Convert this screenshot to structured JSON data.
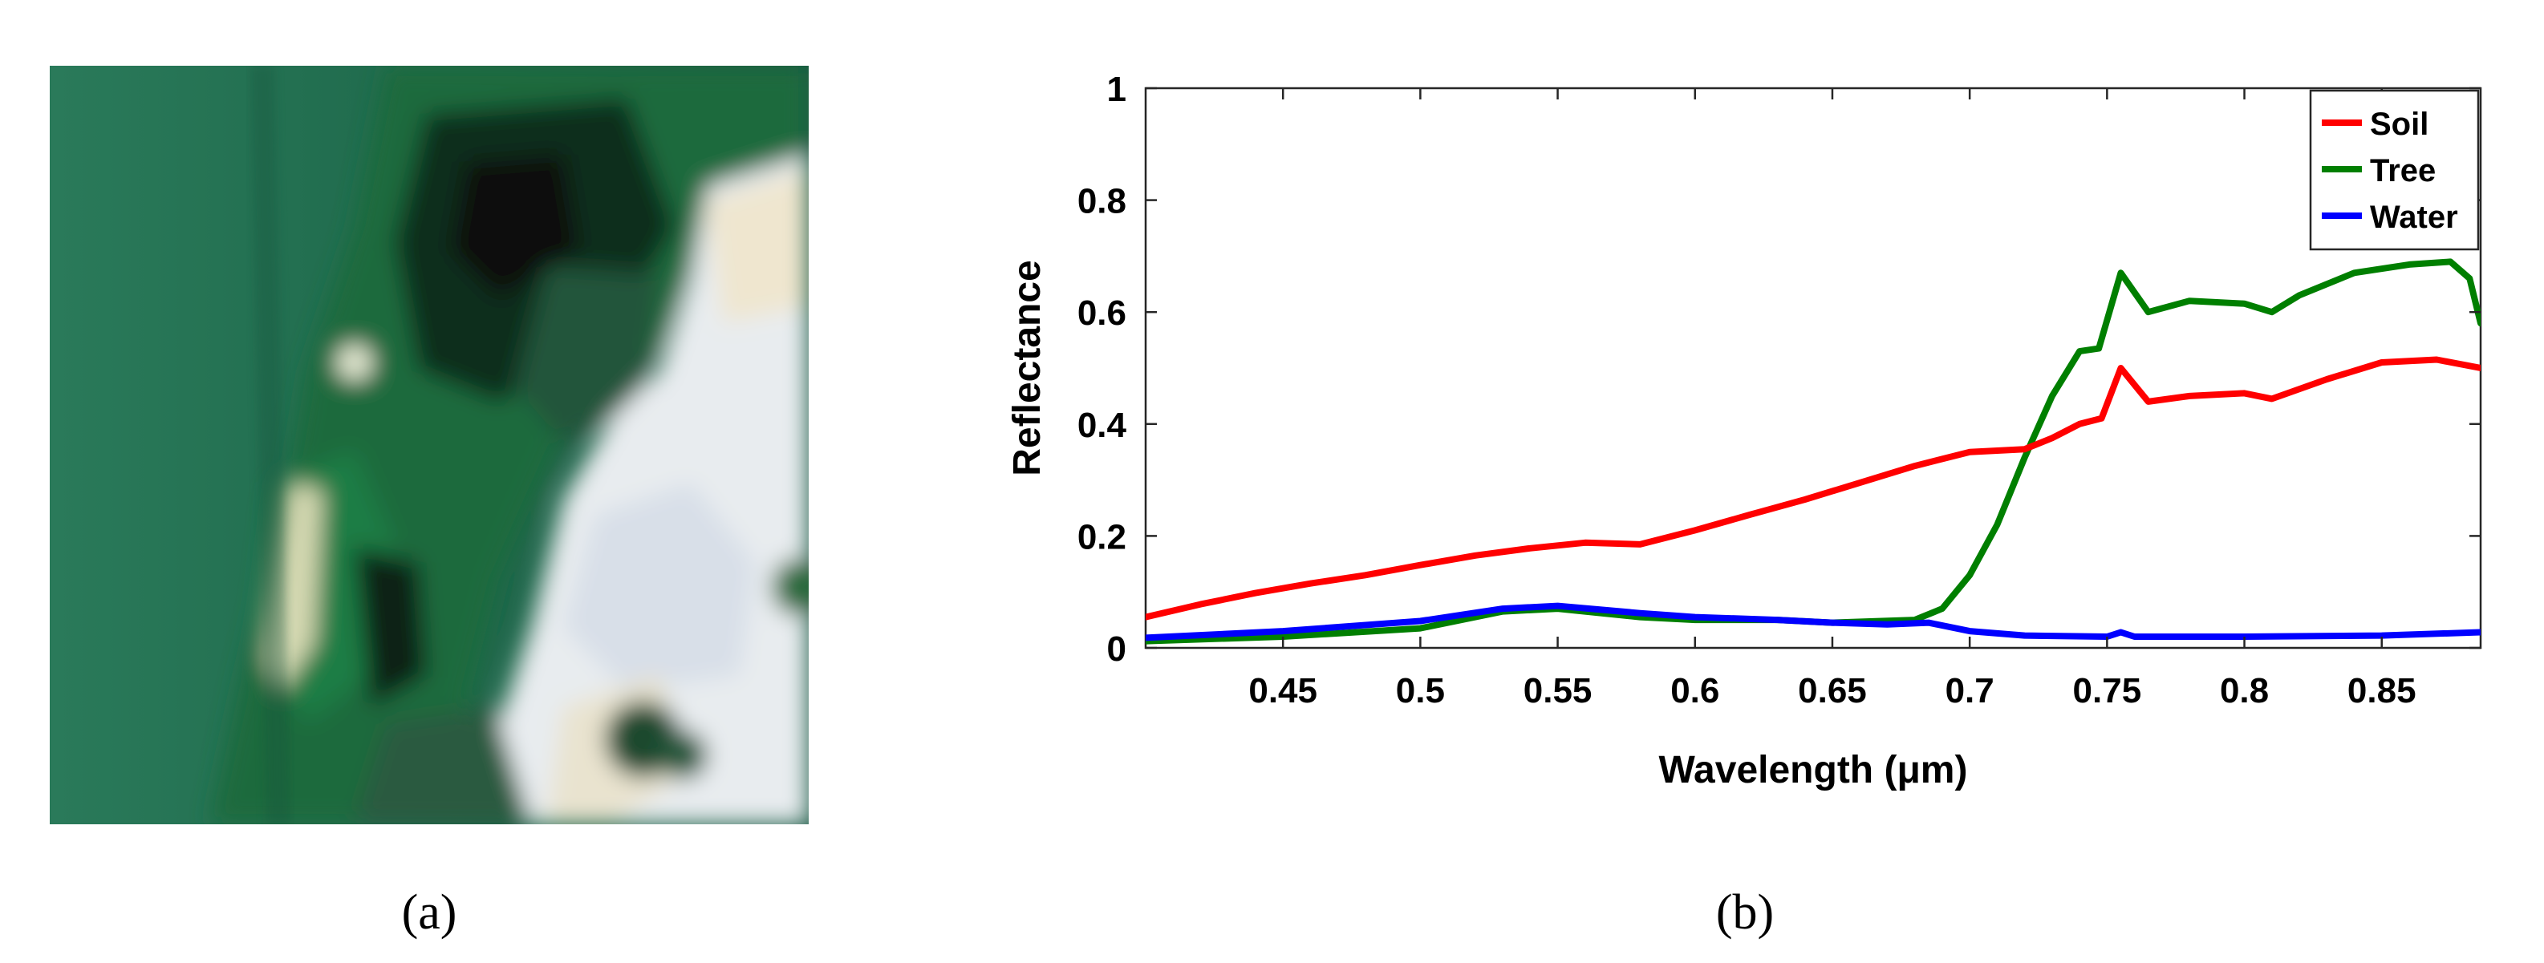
{
  "panels": {
    "a": {
      "caption": "(a)",
      "description_icon": "satellite-image"
    },
    "b": {
      "caption": "(b)"
    }
  },
  "colors": {
    "soil": "#ff0000",
    "tree": "#007f00",
    "water": "#0000ff"
  },
  "chart_data": {
    "type": "line",
    "title": "",
    "xlabel": "Wavelength (μm)",
    "ylabel": "Reflectance",
    "xlim": [
      0.4,
      0.886
    ],
    "ylim": [
      0,
      1
    ],
    "xticks": [
      0.45,
      0.5,
      0.55,
      0.6,
      0.65,
      0.7,
      0.75,
      0.8,
      0.85
    ],
    "xtick_labels": [
      "0.45",
      "0.5",
      "0.55",
      "0.6",
      "0.65",
      "0.7",
      "0.75",
      "0.8",
      "0.85"
    ],
    "yticks": [
      0,
      0.2,
      0.4,
      0.6,
      0.8,
      1
    ],
    "ytick_labels": [
      "0",
      "0.2",
      "0.4",
      "0.6",
      "0.8",
      "1"
    ],
    "legend_position": "top-right",
    "series": [
      {
        "name": "Soil",
        "color": "#ff0000",
        "points": [
          [
            0.4,
            0.055
          ],
          [
            0.42,
            0.078
          ],
          [
            0.44,
            0.098
          ],
          [
            0.46,
            0.115
          ],
          [
            0.48,
            0.13
          ],
          [
            0.5,
            0.148
          ],
          [
            0.52,
            0.165
          ],
          [
            0.54,
            0.178
          ],
          [
            0.56,
            0.188
          ],
          [
            0.58,
            0.185
          ],
          [
            0.6,
            0.21
          ],
          [
            0.62,
            0.238
          ],
          [
            0.64,
            0.265
          ],
          [
            0.66,
            0.295
          ],
          [
            0.68,
            0.325
          ],
          [
            0.7,
            0.35
          ],
          [
            0.72,
            0.355
          ],
          [
            0.73,
            0.375
          ],
          [
            0.74,
            0.4
          ],
          [
            0.748,
            0.41
          ],
          [
            0.755,
            0.5
          ],
          [
            0.765,
            0.44
          ],
          [
            0.78,
            0.45
          ],
          [
            0.8,
            0.455
          ],
          [
            0.81,
            0.445
          ],
          [
            0.83,
            0.48
          ],
          [
            0.85,
            0.51
          ],
          [
            0.87,
            0.515
          ],
          [
            0.886,
            0.5
          ]
        ]
      },
      {
        "name": "Tree",
        "color": "#007f00",
        "points": [
          [
            0.4,
            0.012
          ],
          [
            0.45,
            0.02
          ],
          [
            0.5,
            0.035
          ],
          [
            0.53,
            0.065
          ],
          [
            0.55,
            0.07
          ],
          [
            0.58,
            0.055
          ],
          [
            0.6,
            0.05
          ],
          [
            0.63,
            0.05
          ],
          [
            0.65,
            0.045
          ],
          [
            0.68,
            0.05
          ],
          [
            0.69,
            0.07
          ],
          [
            0.7,
            0.13
          ],
          [
            0.71,
            0.22
          ],
          [
            0.72,
            0.34
          ],
          [
            0.73,
            0.45
          ],
          [
            0.74,
            0.53
          ],
          [
            0.747,
            0.535
          ],
          [
            0.755,
            0.67
          ],
          [
            0.765,
            0.6
          ],
          [
            0.78,
            0.62
          ],
          [
            0.8,
            0.615
          ],
          [
            0.81,
            0.6
          ],
          [
            0.82,
            0.63
          ],
          [
            0.84,
            0.67
          ],
          [
            0.86,
            0.685
          ],
          [
            0.875,
            0.69
          ],
          [
            0.882,
            0.66
          ],
          [
            0.886,
            0.58
          ]
        ]
      },
      {
        "name": "Water",
        "color": "#0000ff",
        "points": [
          [
            0.4,
            0.018
          ],
          [
            0.45,
            0.03
          ],
          [
            0.5,
            0.048
          ],
          [
            0.53,
            0.07
          ],
          [
            0.55,
            0.075
          ],
          [
            0.58,
            0.062
          ],
          [
            0.6,
            0.055
          ],
          [
            0.63,
            0.05
          ],
          [
            0.65,
            0.045
          ],
          [
            0.67,
            0.042
          ],
          [
            0.685,
            0.045
          ],
          [
            0.7,
            0.03
          ],
          [
            0.72,
            0.022
          ],
          [
            0.75,
            0.02
          ],
          [
            0.755,
            0.028
          ],
          [
            0.76,
            0.02
          ],
          [
            0.8,
            0.02
          ],
          [
            0.85,
            0.022
          ],
          [
            0.886,
            0.028
          ]
        ]
      }
    ]
  }
}
